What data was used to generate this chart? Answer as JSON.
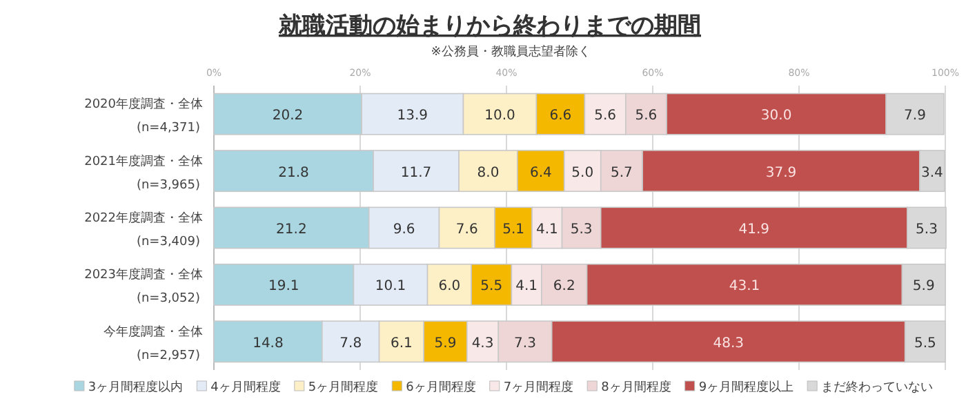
{
  "chart_data": {
    "type": "bar",
    "orientation": "horizontal",
    "stacked": true,
    "title": "就職活動の始まりから終わりまでの期間",
    "subtitle": "※公務員・教職員志望者除く",
    "categories": [
      "2020年度調査・全体\n(n=4,371)",
      "2021年度調査・全体\n(n=3,965)",
      "2022年度調査・全体\n(n=3,409)",
      "2023年度調査・全体\n(n=3,052)",
      "今年度調査・全体\n(n=2,957)"
    ],
    "series": [
      {
        "name": "3ヶ月間程度以内",
        "color": "#a9d6e0",
        "values": [
          20.2,
          21.8,
          21.2,
          19.1,
          14.8
        ],
        "value_labels": [
          "20.2",
          "21.8",
          "21.2",
          "19.1",
          "14.8"
        ]
      },
      {
        "name": "4ヶ月間程度",
        "color": "#e3ebf7",
        "values": [
          13.9,
          11.7,
          9.6,
          10.1,
          7.8
        ],
        "value_labels": [
          "13.9",
          "11.7",
          "9.6",
          "10.1",
          "7.8"
        ]
      },
      {
        "name": "5ヶ月間程度",
        "color": "#fdefc6",
        "values": [
          10.0,
          8.0,
          7.6,
          6.0,
          6.1
        ],
        "value_labels": [
          "10.0",
          "8.0",
          "7.6",
          "6.0",
          "6.1"
        ]
      },
      {
        "name": "6ヶ月間程度",
        "color": "#f5b800",
        "values": [
          6.6,
          6.4,
          5.1,
          5.5,
          5.9
        ],
        "value_labels": [
          "6.6",
          "6.4",
          "5.1",
          "5.5",
          "5.9"
        ]
      },
      {
        "name": "7ヶ月間程度",
        "color": "#f8e8e8",
        "values": [
          5.6,
          5.0,
          4.1,
          4.1,
          4.3
        ],
        "value_labels": [
          "5.6",
          "5.0",
          "4.1",
          "4.1",
          "4.3"
        ]
      },
      {
        "name": "8ヶ月間程度",
        "color": "#efd6d6",
        "values": [
          5.6,
          5.7,
          5.3,
          6.2,
          7.3
        ],
        "value_labels": [
          "5.6",
          "5.7",
          "5.3",
          "6.2",
          "7.3"
        ]
      },
      {
        "name": "9ヶ月間程度以上",
        "color": "#c0504d",
        "values": [
          30.0,
          37.9,
          41.9,
          43.1,
          48.3
        ],
        "value_labels": [
          "30.0",
          "37.9",
          "41.9",
          "43.1",
          "48.3"
        ]
      },
      {
        "name": "まだ終わっていない",
        "color": "#d9d9d9",
        "values": [
          7.9,
          3.4,
          5.3,
          5.9,
          5.5
        ],
        "value_labels": [
          "7.9",
          "3.4",
          "5.3",
          "5.9",
          "5.5"
        ]
      }
    ],
    "xlim": [
      0,
      100
    ],
    "xticks": [
      {
        "value": 0,
        "label": "0%"
      },
      {
        "value": 20,
        "label": "20%"
      },
      {
        "value": 40,
        "label": "40%"
      },
      {
        "value": 60,
        "label": "60%"
      },
      {
        "value": 80,
        "label": "80%"
      },
      {
        "value": 100,
        "label": "100%"
      }
    ],
    "grid": "x",
    "legend": "bottom"
  }
}
